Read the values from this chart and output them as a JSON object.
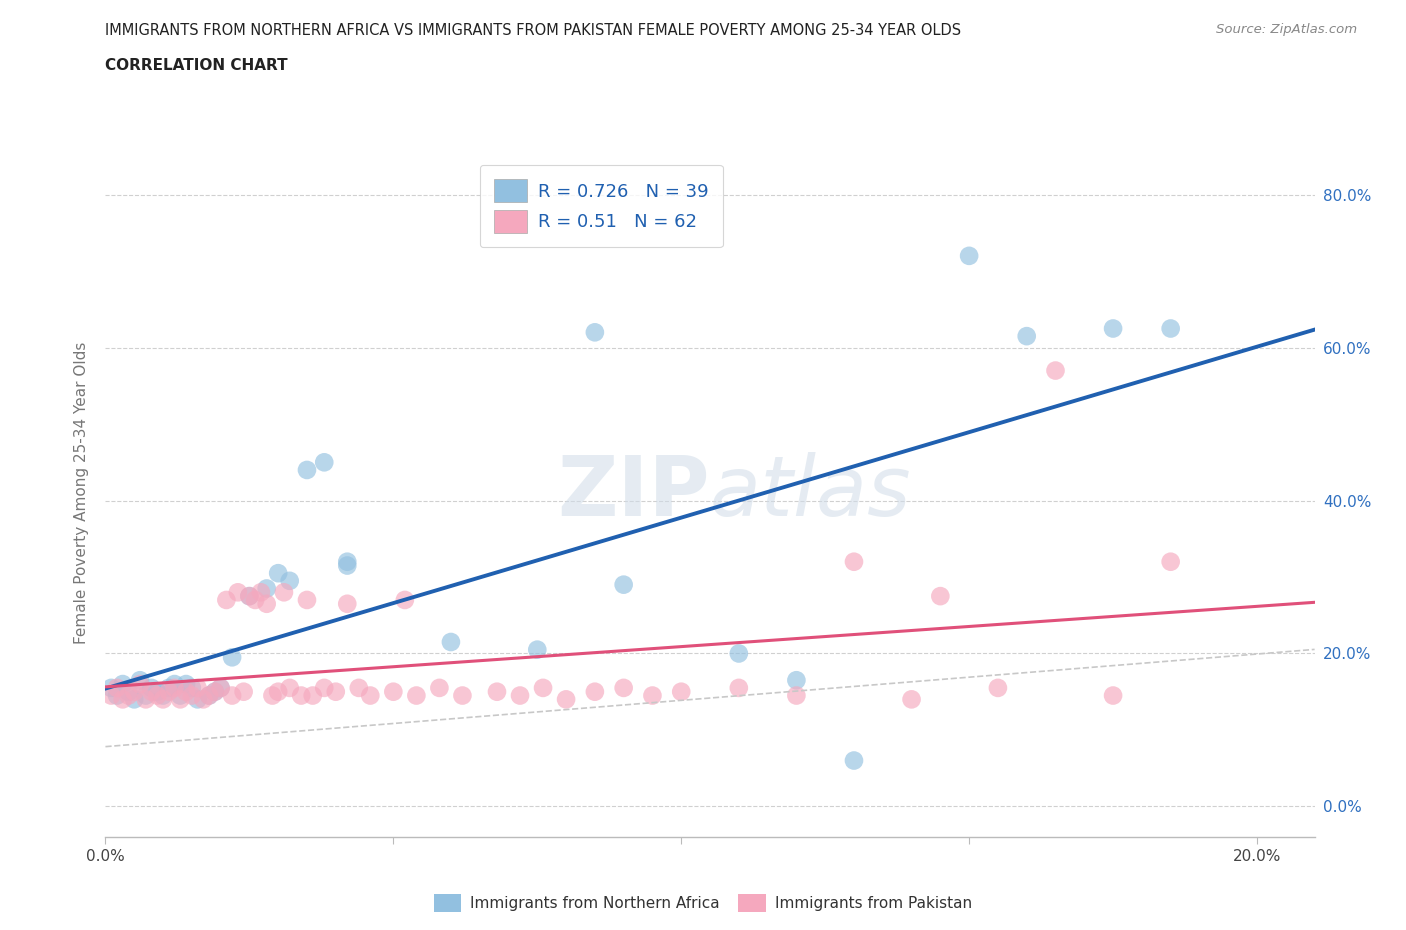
{
  "title_line1": "IMMIGRANTS FROM NORTHERN AFRICA VS IMMIGRANTS FROM PAKISTAN FEMALE POVERTY AMONG 25-34 YEAR OLDS",
  "title_line2": "CORRELATION CHART",
  "source": "Source: ZipAtlas.com",
  "ylabel": "Female Poverty Among 25-34 Year Olds",
  "xlim": [
    0.0,
    0.21
  ],
  "ylim": [
    -0.04,
    0.86
  ],
  "r_blue": 0.726,
  "n_blue": 39,
  "r_pink": 0.51,
  "n_pink": 62,
  "blue_color": "#92c0e0",
  "pink_color": "#f5a8be",
  "trend_blue": "#2060b0",
  "trend_pink": "#e0507a",
  "trend_gray_color": "#c8c8c8",
  "watermark_color": "#d0dce8",
  "ytick_vals": [
    0.0,
    0.2,
    0.4,
    0.6,
    0.8
  ],
  "xtick_vals": [
    0.0,
    0.05,
    0.1,
    0.15,
    0.2
  ],
  "blue_scatter_x": [
    0.001,
    0.002,
    0.003,
    0.004,
    0.005,
    0.006,
    0.007,
    0.008,
    0.009,
    0.01,
    0.011,
    0.012,
    0.013,
    0.014,
    0.015,
    0.016,
    0.018,
    0.019,
    0.02,
    0.022,
    0.025,
    0.028,
    0.03,
    0.032,
    0.035,
    0.038,
    0.042,
    0.042,
    0.06,
    0.075,
    0.085,
    0.09,
    0.11,
    0.12,
    0.13,
    0.15,
    0.16,
    0.175,
    0.185
  ],
  "blue_scatter_y": [
    0.155,
    0.145,
    0.16,
    0.15,
    0.14,
    0.165,
    0.145,
    0.155,
    0.15,
    0.145,
    0.155,
    0.16,
    0.145,
    0.16,
    0.155,
    0.14,
    0.145,
    0.15,
    0.155,
    0.195,
    0.275,
    0.285,
    0.305,
    0.295,
    0.44,
    0.45,
    0.315,
    0.32,
    0.215,
    0.205,
    0.62,
    0.29,
    0.2,
    0.165,
    0.06,
    0.72,
    0.615,
    0.625,
    0.625
  ],
  "pink_scatter_x": [
    0.001,
    0.002,
    0.003,
    0.004,
    0.005,
    0.006,
    0.007,
    0.008,
    0.009,
    0.01,
    0.011,
    0.012,
    0.013,
    0.014,
    0.015,
    0.016,
    0.017,
    0.018,
    0.019,
    0.02,
    0.021,
    0.022,
    0.023,
    0.024,
    0.025,
    0.026,
    0.027,
    0.028,
    0.029,
    0.03,
    0.031,
    0.032,
    0.034,
    0.035,
    0.036,
    0.038,
    0.04,
    0.042,
    0.044,
    0.046,
    0.05,
    0.052,
    0.054,
    0.058,
    0.062,
    0.068,
    0.072,
    0.076,
    0.08,
    0.085,
    0.09,
    0.095,
    0.1,
    0.11,
    0.12,
    0.13,
    0.14,
    0.145,
    0.155,
    0.165,
    0.175,
    0.185
  ],
  "pink_scatter_y": [
    0.145,
    0.155,
    0.14,
    0.145,
    0.15,
    0.16,
    0.14,
    0.15,
    0.145,
    0.14,
    0.15,
    0.155,
    0.14,
    0.15,
    0.145,
    0.155,
    0.14,
    0.145,
    0.15,
    0.155,
    0.27,
    0.145,
    0.28,
    0.15,
    0.275,
    0.27,
    0.28,
    0.265,
    0.145,
    0.15,
    0.28,
    0.155,
    0.145,
    0.27,
    0.145,
    0.155,
    0.15,
    0.265,
    0.155,
    0.145,
    0.15,
    0.27,
    0.145,
    0.155,
    0.145,
    0.15,
    0.145,
    0.155,
    0.14,
    0.15,
    0.155,
    0.145,
    0.15,
    0.155,
    0.145,
    0.32,
    0.14,
    0.275,
    0.155,
    0.57,
    0.145,
    0.32
  ]
}
